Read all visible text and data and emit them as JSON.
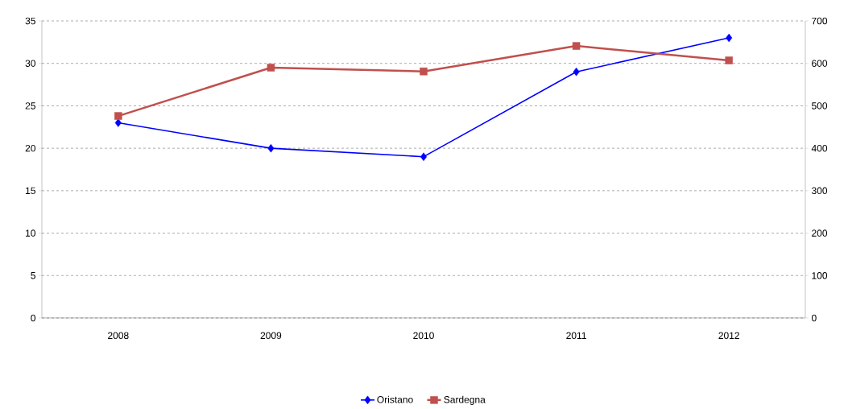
{
  "chart_data": {
    "type": "line",
    "categories": [
      "2008",
      "2009",
      "2010",
      "2011",
      "2012"
    ],
    "series": [
      {
        "name": "Oristano",
        "color": "#0000ff",
        "marker": "diamond",
        "values": [
          23,
          20,
          19,
          29,
          33
        ]
      },
      {
        "name": "Sardegna",
        "color": "#c0504d",
        "marker": "square",
        "axis": "y2",
        "values": [
          476,
          590,
          581,
          641,
          607
        ]
      }
    ],
    "ylim": [
      0,
      35
    ],
    "yticks": [
      0,
      5,
      10,
      15,
      20,
      25,
      30,
      35
    ],
    "y2lim": [
      0,
      700
    ],
    "y2ticks": [
      0,
      100,
      200,
      300,
      400,
      500,
      600,
      700
    ],
    "grid": "y",
    "legend": "bottom",
    "line_style": "solid"
  }
}
